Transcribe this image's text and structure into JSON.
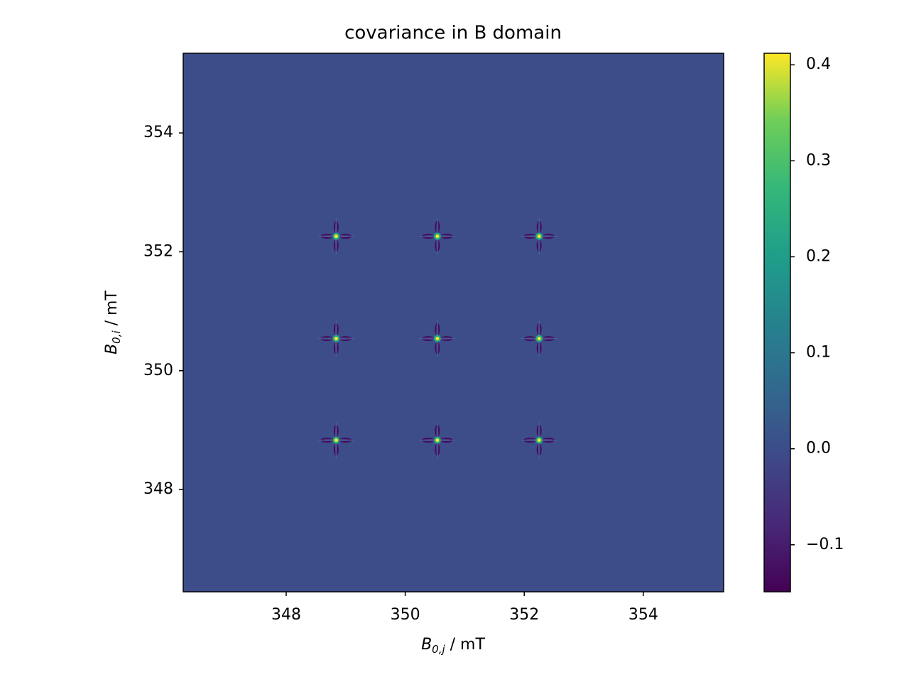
{
  "chart_data": {
    "type": "heatmap",
    "title": "covariance in B domain",
    "xlabel": {
      "symbol": "B",
      "subscript": "0,j",
      "unit": " / mT"
    },
    "ylabel": {
      "symbol": "B",
      "subscript": "0,i",
      "unit": " / mT"
    },
    "x": [
      348.84,
      350.54,
      352.25
    ],
    "y": [
      352.26,
      350.54,
      348.83
    ],
    "z": [
      [
        0.41,
        0.41,
        0.41
      ],
      [
        0.41,
        0.41,
        0.41
      ],
      [
        0.41,
        0.41,
        0.41
      ]
    ],
    "background": 0.0,
    "lobe": -0.14,
    "xlim": [
      346.27,
      355.35
    ],
    "ylim": [
      346.28,
      355.34
    ],
    "xticks": [
      348,
      350,
      352,
      354
    ],
    "yticks": [
      348,
      350,
      352,
      354
    ],
    "colormap": "viridis",
    "clim": [
      -0.149,
      0.412
    ],
    "cticks": [
      {
        "value": -0.1,
        "label": "−0.1"
      },
      {
        "value": 0,
        "label": "0.0"
      },
      0.1,
      0.2,
      0.3,
      0.4
    ]
  }
}
